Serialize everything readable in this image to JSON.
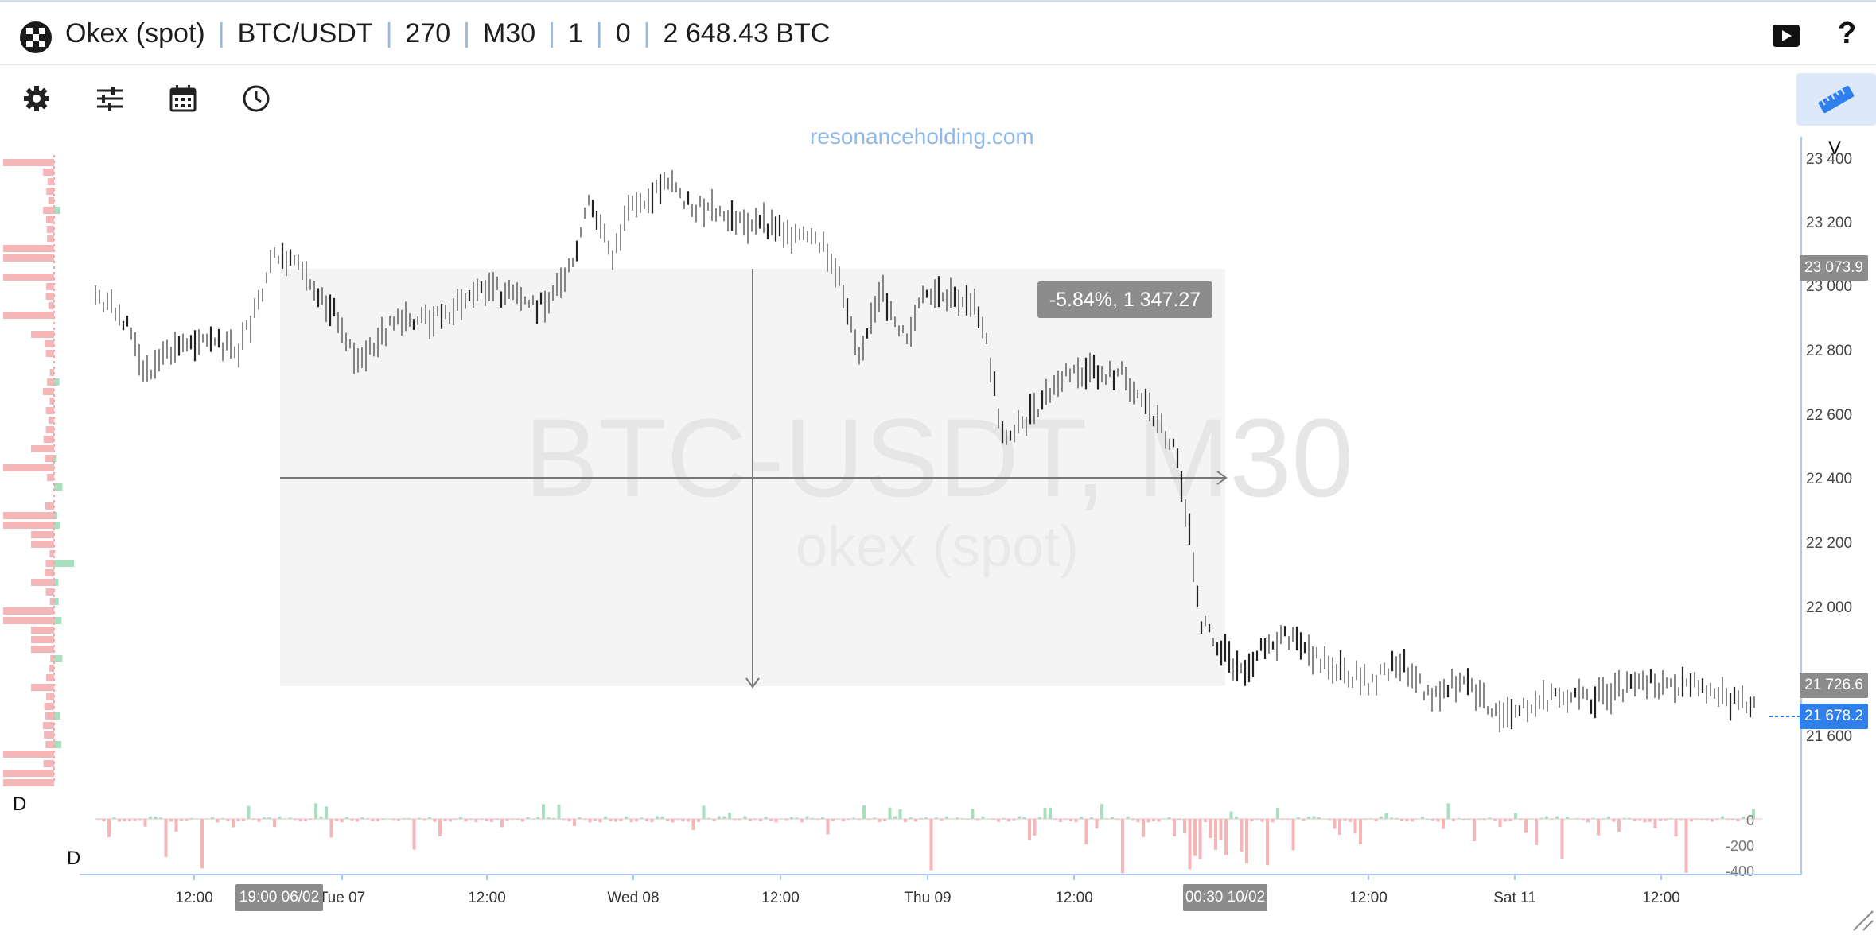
{
  "header": {
    "exchange": "Okex (spot)",
    "pair": "BTC/USDT",
    "value1": "270",
    "timeframe": "M30",
    "value2": "1",
    "value3": "0",
    "volume": "2 648.43 BTC",
    "help_label": "?"
  },
  "icons": {
    "logo": "logo-icon",
    "play": "play-icon",
    "settings": "gear-icon",
    "sliders": "sliders-icon",
    "calendar": "calendar-icon",
    "clock": "clock-icon",
    "ruler": "ruler-icon"
  },
  "watermark": {
    "url": "resonanceholding.com",
    "symbol": "BTC-USDT, M30",
    "exchange": "okex (spot)"
  },
  "measure": {
    "label": "-5.84%, 1 347.27"
  },
  "price_axis": {
    "header": "V",
    "ticks": [
      "23 400",
      "23 200",
      "23 000",
      "22 800",
      "22 600",
      "22 400",
      "22 200",
      "22 000",
      "21 600"
    ],
    "tag_high": "23 073.9",
    "tag_low": "21 726.6",
    "tag_current": "21 678.2"
  },
  "volume_panel": {
    "label_top": "D",
    "label_bottom": "D",
    "ticks": [
      "0",
      "-200",
      "-400"
    ]
  },
  "time_axis": {
    "ticks": [
      "12:00",
      "Tue 07",
      "12:00",
      "Wed 08",
      "12:00",
      "Thu 09",
      "12:00",
      "12:00",
      "Sat 11",
      "12:00"
    ],
    "tag_start": "19:00 06/02",
    "tag_end": "00:30 10/02"
  },
  "colors": {
    "accent": "#2f80ed",
    "sell": "#f4b6b6",
    "buy": "#a8e0bf",
    "candle": "#333333",
    "tag_gray": "#8c8c8c"
  },
  "chart_data": {
    "type": "bar",
    "title": "BTC-USDT, M30",
    "x": [
      "06/02 19:00",
      "Tue 07 00:00",
      "Tue 07 12:00",
      "Wed 08 00:00",
      "Wed 08 12:00",
      "Thu 09 00:00",
      "Thu 09 12:00",
      "Fri 10 00:00",
      "Fri 10 12:00",
      "Sat 11 00:00",
      "Sat 11 12:00",
      "Sat 11 20:00"
    ],
    "series": [
      {
        "name": "",
        "values": [
          22950,
          22800,
          22900,
          22950,
          23300,
          23180,
          22950,
          22850,
          21900,
          21750,
          21640,
          21700
        ]
      }
    ],
    "ylim": [
      21450,
      23450
    ],
    "measure": {
      "change_pct": -5.84,
      "change_abs": 1347.27,
      "from": 23073.9,
      "to": 21726.6
    },
    "current_price": 21678.2,
    "volume_delta_ylim": [
      -400,
      40
    ]
  }
}
